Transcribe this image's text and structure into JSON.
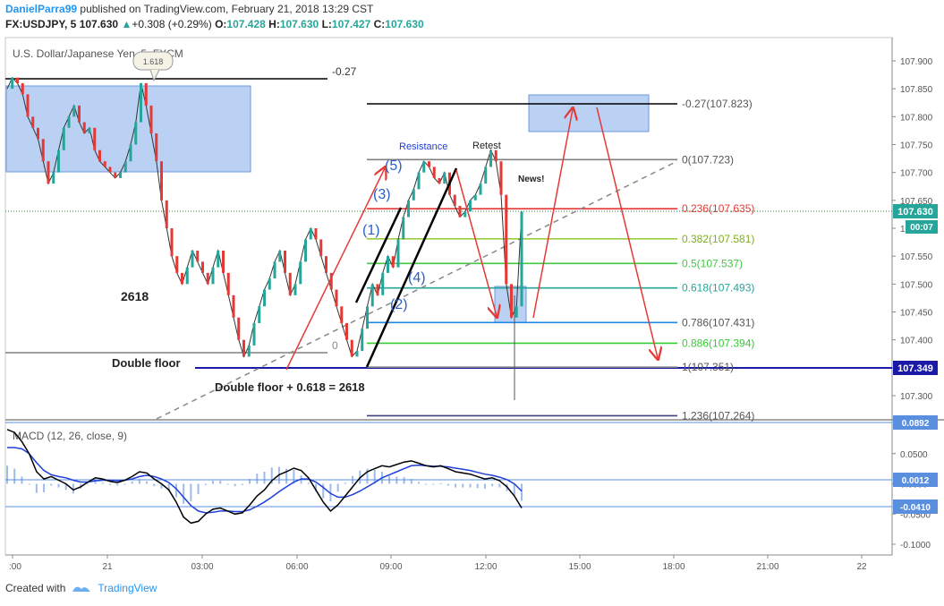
{
  "header": {
    "author": "DanielParra99",
    "published": " published on TradingView.com, February 21, 2018 13:29 CST",
    "symbol": "FX:USDJPY, 5",
    "last": "107.630",
    "change_arrow": "▲",
    "change": "+0.308 (+0.29%)",
    "o_label": "O:",
    "o_val": "107.428",
    "h_label": "H:",
    "h_val": "107.630",
    "l_label": "L:",
    "l_val": "107.427",
    "c_label": "C:",
    "c_val": "107.630"
  },
  "chart_data": {
    "type": "line",
    "title": "U.S. Dollar/Japanese Yen, 5, FXCM",
    "price_axis": {
      "ticks": [
        "107.900",
        "107.850",
        "107.800",
        "107.750",
        "107.700",
        "107.650",
        "107.600",
        "107.550",
        "107.500",
        "107.450",
        "107.400",
        "107.350",
        "107.300"
      ],
      "ylim": [
        107.26,
        107.92
      ],
      "last_price_label": "107.630",
      "countdown_label": "00:07",
      "double_floor_label": "107.349"
    },
    "time_axis": {
      "ticks": [
        ":00",
        "21",
        "03:00",
        "06:00",
        "09:00",
        "12:00",
        "15:00",
        "18:00",
        "21:00",
        "22"
      ]
    },
    "fib_levels": [
      {
        "label": "-0.27(107.823)",
        "price": 107.823,
        "color": "#000000"
      },
      {
        "label": "0(107.723)",
        "price": 107.723,
        "color": "#808080"
      },
      {
        "label": "0.236(107.635)",
        "price": 107.635,
        "color": "#e53935"
      },
      {
        "label": "0.382(107.581)",
        "price": 107.581,
        "color": "#9ccc3d"
      },
      {
        "label": "0.5(107.537)",
        "price": 107.537,
        "color": "#43c843"
      },
      {
        "label": "0.618(107.493)",
        "price": 107.493,
        "color": "#26a69a"
      },
      {
        "label": "0.786(107.431)",
        "price": 107.431,
        "color": "#1e88e5"
      },
      {
        "label": "0.886(107.394)",
        "price": 107.394,
        "color": "#33cc33"
      },
      {
        "label": "1(107.351)",
        "price": 107.351,
        "color": "#808080"
      },
      {
        "label": "1.236(107.264)",
        "price": 107.264,
        "color": "#3f3f7f"
      }
    ],
    "left_fib_labels": {
      "top": "-0.27",
      "zero": "0",
      "bubble": "1.618"
    },
    "annotations": {
      "resistance": "Resistance",
      "retest": "Retest",
      "news": "News!",
      "n2618": "2618",
      "double_floor": "Double floor",
      "double_floor_eq": "Double floor + 0.618 = 2618",
      "waves": [
        "(1)",
        "(2)",
        "(3)",
        "(4)",
        "(5)"
      ]
    },
    "price_path": [
      107.85,
      107.87,
      107.86,
      107.84,
      107.8,
      107.78,
      107.76,
      107.72,
      107.68,
      107.7,
      107.74,
      107.78,
      107.8,
      107.82,
      107.79,
      107.77,
      107.78,
      107.74,
      107.72,
      107.71,
      107.7,
      107.69,
      107.7,
      107.72,
      107.75,
      107.79,
      107.86,
      107.82,
      107.77,
      107.72,
      107.65,
      107.6,
      107.55,
      107.52,
      107.5,
      107.53,
      107.56,
      107.54,
      107.52,
      107.5,
      107.53,
      107.56,
      107.52,
      107.48,
      107.44,
      107.4,
      107.37,
      107.39,
      107.43,
      107.46,
      107.49,
      107.51,
      107.54,
      107.56,
      107.52,
      107.48,
      107.5,
      107.54,
      107.58,
      107.6,
      107.58,
      107.55,
      107.52,
      107.49,
      107.46,
      107.43,
      107.4,
      107.37,
      107.38,
      107.42,
      107.46,
      107.5,
      107.48,
      107.52,
      107.55,
      107.53,
      107.58,
      107.62,
      107.65,
      107.67,
      107.7,
      107.72,
      107.71,
      107.69,
      107.68,
      107.7,
      107.66,
      107.64,
      107.62,
      107.63,
      107.65,
      107.66,
      107.68,
      107.71,
      107.74,
      107.72,
      107.66,
      107.5,
      107.44,
      107.46,
      107.63
    ],
    "macd": {
      "title": "MACD (12, 26, close, 9)",
      "ticks": [
        "0.0500",
        "0.0000",
        "-0.0500",
        "-0.1000"
      ],
      "ylim": [
        -0.115,
        0.1
      ],
      "labels": [
        "0.0892",
        "0.0012",
        "-0.0410"
      ],
      "macd_line": [
        0.09,
        0.085,
        0.07,
        0.05,
        0.02,
        0.008,
        0.012,
        0.006,
        0.0,
        -0.01,
        -0.005,
        0.003,
        0.01,
        0.008,
        0.004,
        0.002,
        0.006,
        0.012,
        0.02,
        0.018,
        0.008,
        0.0,
        -0.01,
        -0.03,
        -0.055,
        -0.065,
        -0.062,
        -0.05,
        -0.042,
        -0.04,
        -0.045,
        -0.05,
        -0.048,
        -0.035,
        -0.02,
        -0.01,
        0.005,
        0.015,
        0.02,
        0.026,
        0.022,
        0.01,
        -0.01,
        -0.03,
        -0.045,
        -0.035,
        -0.02,
        -0.005,
        0.01,
        0.02,
        0.025,
        0.03,
        0.028,
        0.032,
        0.036,
        0.038,
        0.034,
        0.03,
        0.028,
        0.03,
        0.025,
        0.02,
        0.018,
        0.016,
        0.012,
        0.008,
        0.01,
        0.005,
        -0.005,
        -0.02,
        -0.04
      ],
      "signal_line": [
        0.06,
        0.06,
        0.058,
        0.05,
        0.035,
        0.022,
        0.015,
        0.012,
        0.01,
        0.006,
        0.003,
        0.003,
        0.005,
        0.006,
        0.006,
        0.005,
        0.006,
        0.008,
        0.012,
        0.014,
        0.012,
        0.008,
        0.002,
        -0.008,
        -0.022,
        -0.036,
        -0.045,
        -0.048,
        -0.047,
        -0.045,
        -0.045,
        -0.046,
        -0.046,
        -0.043,
        -0.037,
        -0.03,
        -0.022,
        -0.013,
        -0.005,
        0.003,
        0.008,
        0.008,
        0.003,
        -0.006,
        -0.016,
        -0.022,
        -0.022,
        -0.018,
        -0.012,
        -0.005,
        0.002,
        0.01,
        0.015,
        0.02,
        0.025,
        0.03,
        0.031,
        0.03,
        0.029,
        0.029,
        0.028,
        0.026,
        0.024,
        0.022,
        0.019,
        0.016,
        0.014,
        0.011,
        0.007,
        0.0,
        -0.012
      ]
    }
  },
  "footer": {
    "created_with": "Created with",
    "brand": "TradingView"
  },
  "colors": {
    "bull": "#26a69a",
    "bear": "#e53935",
    "macd": "#000000",
    "signal": "#1e3fd8",
    "accent": "#2196f3",
    "box": "#aec9f2"
  }
}
